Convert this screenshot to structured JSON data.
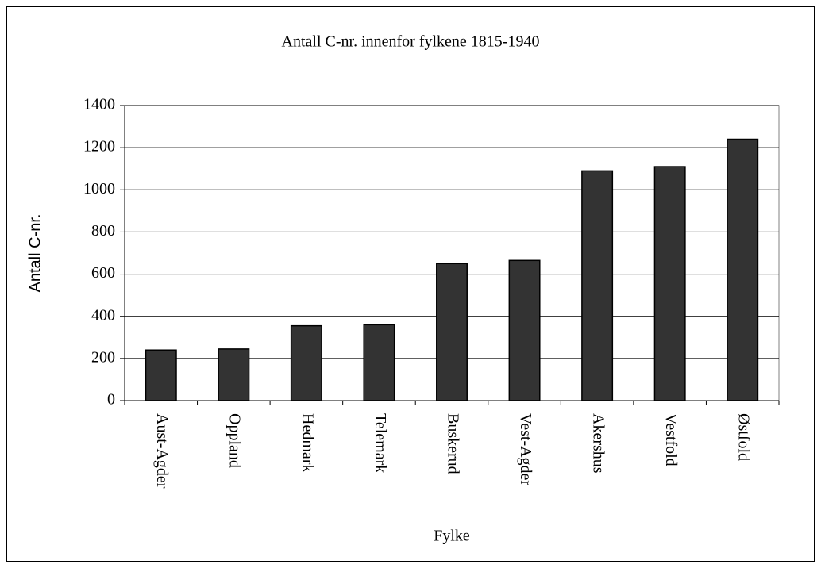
{
  "chart_data": {
    "type": "bar",
    "title": "Antall C-nr. innenfor fylkene 1815-1940",
    "x_label": "Fylke",
    "y_label": "Antall C-nr.",
    "categories": [
      "Aust-Agder",
      "Oppland",
      "Hedmark",
      "Telemark",
      "Buskerud",
      "Vest-Agder",
      "Akershus",
      "Vestfold",
      "Østfold"
    ],
    "values": [
      240,
      245,
      355,
      360,
      650,
      665,
      1090,
      1110,
      1240
    ],
    "color": "#333333",
    "ylim": [
      0,
      1400
    ],
    "yticks": [
      0,
      200,
      400,
      600,
      800,
      1000,
      1200,
      1400
    ],
    "grid": true
  }
}
